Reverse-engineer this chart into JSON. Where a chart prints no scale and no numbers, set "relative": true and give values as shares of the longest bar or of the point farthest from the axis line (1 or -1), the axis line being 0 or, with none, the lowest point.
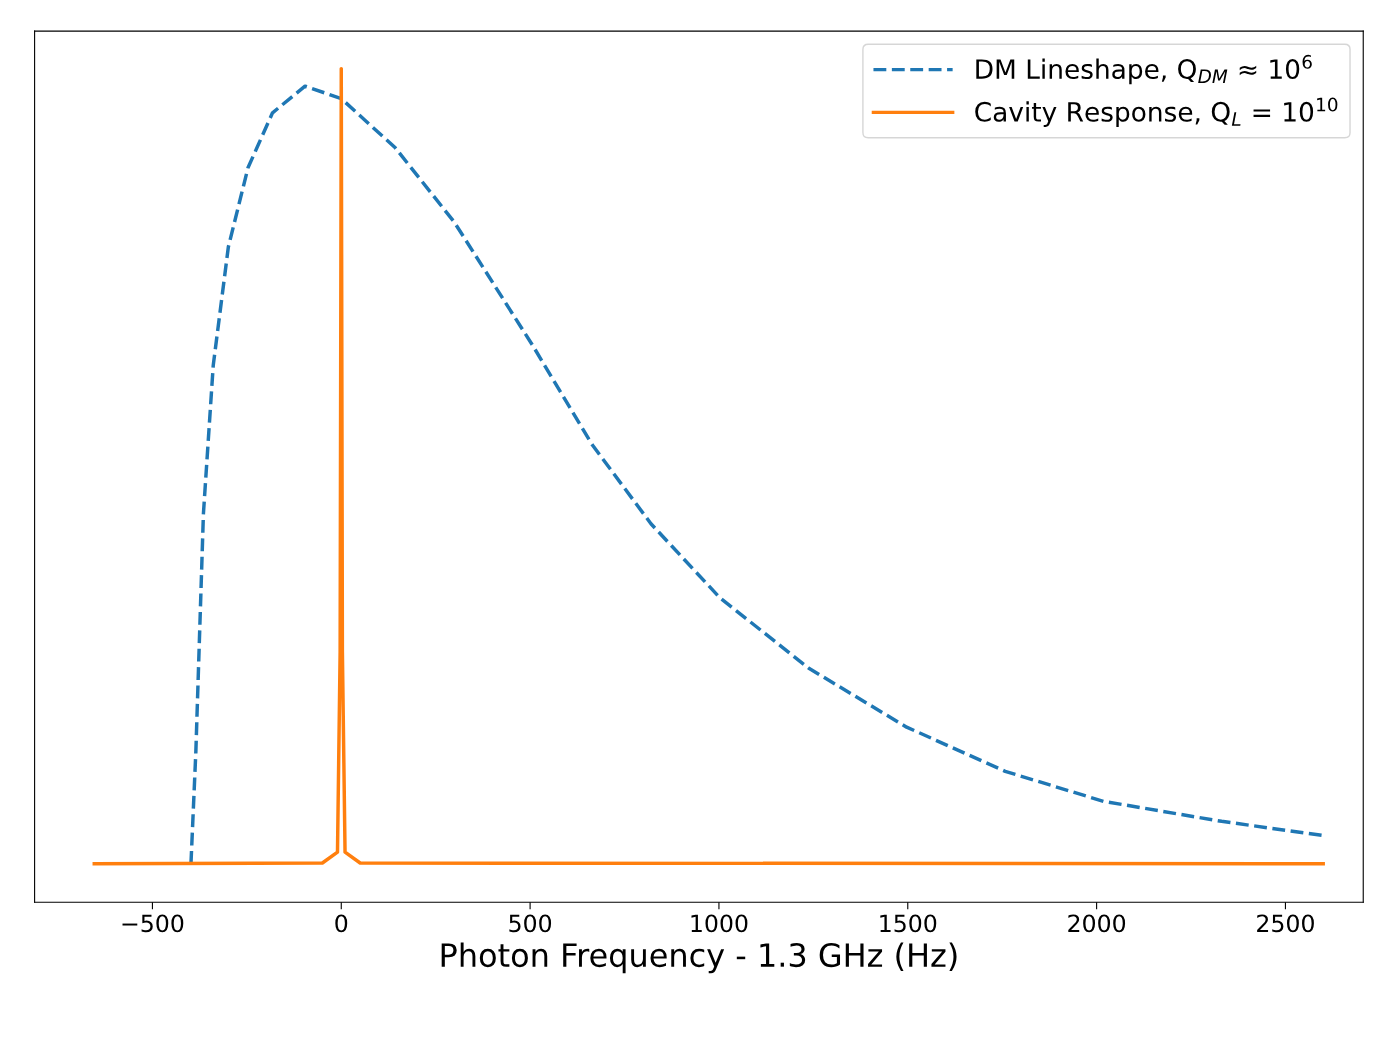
{
  "chart_data": {
    "type": "line",
    "xlabel": "Photon Frequency - 1.3 GHz (Hz)",
    "relative": true,
    "xlim": [
      -812,
      2706
    ],
    "xticks": [
      {
        "value": -500,
        "label": "−500"
      },
      0,
      500,
      1000,
      1500,
      2000,
      2500
    ],
    "legend": "top right",
    "grid": false,
    "marker": "none",
    "series": [
      {
        "name": "DM Lineshape, Q$_{DM}$ ≈ 10$^{6}$",
        "color": "#1f77b4",
        "line_style": "dashed",
        "x": [
          -398,
          -385,
          -365,
          -339,
          -299,
          -247,
          -182,
          -96,
          0,
          143,
          299,
          508,
          664,
          820,
          1003,
          1237,
          1497,
          1758,
          2018,
          2331,
          2599
        ],
        "values": [
          0.046,
          0.181,
          0.466,
          0.644,
          0.786,
          0.881,
          0.947,
          0.979,
          0.964,
          0.905,
          0.816,
          0.667,
          0.549,
          0.454,
          0.365,
          0.281,
          0.21,
          0.157,
          0.121,
          0.097,
          0.08
        ]
      },
      {
        "name": "Cavity Response, Q$_{L}$ = 10$^{10}$",
        "color": "#ff7f0e",
        "line_style": "solid",
        "x": [
          -654,
          -50,
          -10,
          -3,
          0,
          3,
          10,
          50,
          2600
        ],
        "values": [
          0.046,
          0.047,
          0.06,
          0.3,
          1,
          0.3,
          0.06,
          0.047,
          0.046
        ]
      }
    ]
  }
}
